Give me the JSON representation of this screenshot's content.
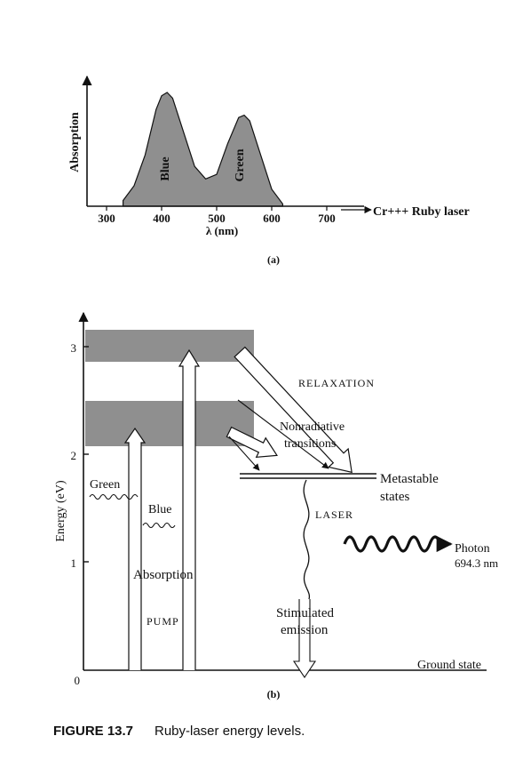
{
  "colors": {
    "ink": "#111111",
    "shade": "#8f8f8f",
    "paper": "#ffffff"
  },
  "chart_data": [
    {
      "type": "area",
      "panel_label": "(a)",
      "xlabel": "λ (nm)",
      "ylabel": "Absorption",
      "x_ticks": [
        300,
        400,
        500,
        600,
        700
      ],
      "xlim": [
        300,
        700
      ],
      "peaks": [
        {
          "label": "Blue",
          "wavelength_nm": 410
        },
        {
          "label": "Green",
          "wavelength_nm": 550
        }
      ],
      "series": [
        {
          "x": [
            330,
            350,
            370,
            390,
            400,
            410,
            420,
            440,
            460,
            480,
            500,
            520,
            540,
            550,
            560,
            580,
            600,
            620
          ],
          "y": [
            0.05,
            0.18,
            0.45,
            0.85,
            0.97,
            1.0,
            0.95,
            0.65,
            0.35,
            0.24,
            0.28,
            0.55,
            0.78,
            0.8,
            0.75,
            0.45,
            0.15,
            0.02
          ]
        }
      ],
      "annotation": "Cr+++ Ruby laser"
    },
    {
      "type": "diagram",
      "panel_label": "(b)",
      "ylabel": "Energy (eV)",
      "y_ticks": [
        0,
        1,
        2,
        3
      ],
      "bands": [
        {
          "name": "Blue absorption band",
          "range_ev": [
            2.85,
            3.2
          ]
        },
        {
          "name": "Green absorption band",
          "range_ev": [
            2.05,
            2.5
          ]
        }
      ],
      "labels": {
        "relaxation": "RELAXATION",
        "nonradiative": "Nonradiative transitions",
        "metastable": "Metastable states",
        "laser": "LASER",
        "stimulated": "Stimulated emission",
        "ground": "Ground state",
        "green": "Green",
        "blue": "Blue",
        "absorption": "Absorption",
        "pump": "PUMP",
        "photon": "Photon",
        "photon_wavelength": "694.3 nm"
      }
    }
  ],
  "caption": {
    "figure": "FIGURE 13.7",
    "text": "Ruby-laser energy levels."
  }
}
